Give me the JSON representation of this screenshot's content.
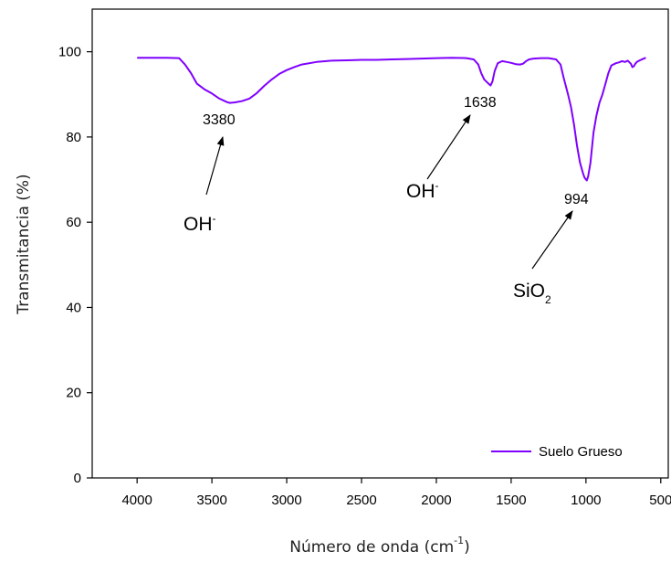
{
  "chart_data": {
    "type": "line",
    "title": "",
    "xlabel": "Número de onda (cm",
    "xlabel_sup": "-1",
    "xlabel_close": ")",
    "ylabel": "Transmitancia (%)",
    "xlim": [
      4300,
      450
    ],
    "ylim": [
      0,
      110
    ],
    "x_reversed": true,
    "grid": false,
    "x_ticks": [
      4000,
      3500,
      3000,
      2500,
      2000,
      1500,
      1000,
      500
    ],
    "y_ticks": [
      0,
      20,
      40,
      60,
      80,
      100
    ],
    "legend": {
      "position": "bottom-right"
    },
    "series": [
      {
        "name": "Suelo Grueso",
        "color": "#7f00ff",
        "x": [
          4000,
          3900,
          3800,
          3720,
          3680,
          3640,
          3600,
          3550,
          3500,
          3450,
          3400,
          3380,
          3350,
          3300,
          3250,
          3200,
          3150,
          3100,
          3050,
          3000,
          2950,
          2900,
          2800,
          2700,
          2600,
          2500,
          2400,
          2300,
          2200,
          2100,
          2000,
          1900,
          1800,
          1750,
          1720,
          1700,
          1680,
          1660,
          1645,
          1638,
          1625,
          1610,
          1590,
          1560,
          1530,
          1500,
          1470,
          1440,
          1420,
          1400,
          1380,
          1350,
          1300,
          1250,
          1200,
          1170,
          1150,
          1120,
          1100,
          1080,
          1060,
          1040,
          1020,
          1010,
          1000,
          994,
          985,
          970,
          950,
          930,
          910,
          890,
          870,
          850,
          830,
          800,
          780,
          760,
          740,
          720,
          700,
          690,
          680,
          670,
          660,
          640,
          620,
          600
        ],
        "y": [
          98.6,
          98.6,
          98.6,
          98.5,
          97.0,
          95.0,
          92.5,
          91.2,
          90.2,
          89.0,
          88.2,
          88.0,
          88.1,
          88.4,
          89.0,
          90.3,
          92.0,
          93.5,
          94.8,
          95.7,
          96.4,
          97.0,
          97.6,
          97.9,
          98.0,
          98.1,
          98.1,
          98.2,
          98.3,
          98.4,
          98.5,
          98.6,
          98.5,
          98.2,
          97.0,
          95.0,
          93.5,
          92.8,
          92.3,
          92.1,
          93.0,
          95.5,
          97.3,
          97.8,
          97.6,
          97.4,
          97.1,
          97.0,
          97.2,
          97.8,
          98.2,
          98.4,
          98.5,
          98.5,
          98.2,
          97.0,
          94.0,
          90.0,
          87.0,
          83.0,
          78.0,
          74.0,
          71.5,
          70.5,
          70.0,
          69.8,
          70.8,
          74.0,
          81.0,
          85.0,
          88.0,
          90.0,
          92.5,
          95.0,
          96.8,
          97.3,
          97.5,
          97.8,
          97.6,
          97.9,
          97.2,
          96.4,
          96.6,
          97.2,
          97.6,
          98.0,
          98.3,
          98.6
        ]
      }
    ],
    "annotations": [
      {
        "id": "peak-3380",
        "text": "3380"
      },
      {
        "id": "peak-1638",
        "text": "1638"
      },
      {
        "id": "peak-994",
        "text": "994"
      },
      {
        "id": "group-oh-1",
        "text": "OH",
        "sup": "-"
      },
      {
        "id": "group-oh-2",
        "text": "OH",
        "sup": "-"
      },
      {
        "id": "group-sio2",
        "text": "SiO",
        "sub": "2"
      }
    ]
  }
}
